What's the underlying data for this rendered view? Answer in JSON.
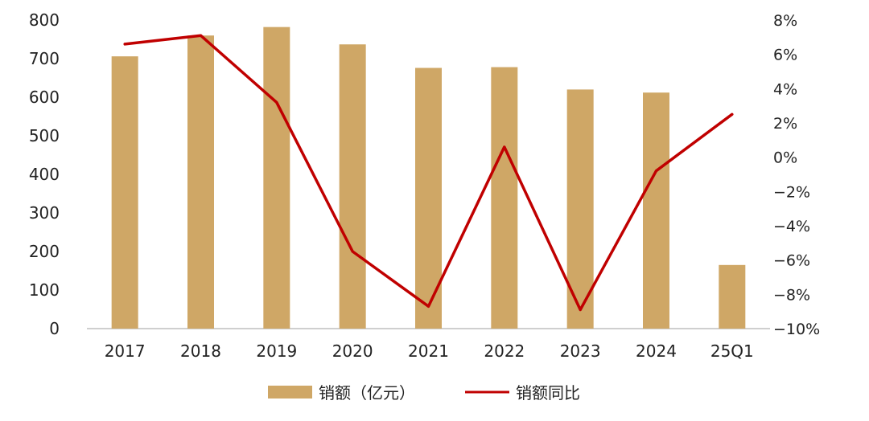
{
  "chart_data": {
    "type": "bar+line",
    "categories": [
      "2017",
      "2018",
      "2019",
      "2020",
      "2021",
      "2022",
      "2023",
      "2024",
      "25Q1"
    ],
    "series": [
      {
        "name": "销额（亿元）",
        "kind": "bar",
        "axis": "left",
        "color": "#CFA766",
        "values": [
          706,
          760,
          782,
          737,
          676,
          678,
          620,
          612,
          165
        ]
      },
      {
        "name": "销额同比",
        "kind": "line",
        "axis": "right",
        "unit": "%",
        "color": "#C00000",
        "values": [
          6.6,
          7.1,
          3.2,
          -5.5,
          -8.7,
          0.6,
          -8.9,
          -0.8,
          2.5
        ]
      }
    ],
    "left_axis": {
      "ylim": [
        0,
        800
      ],
      "ticks": [
        "0",
        "100",
        "200",
        "300",
        "400",
        "500",
        "600",
        "700",
        "800"
      ]
    },
    "right_axis": {
      "ylim": [
        -10,
        8
      ],
      "ticks": [
        "8%",
        "6%",
        "4%",
        "2%",
        "0%",
        "−2%",
        "−4%",
        "−6%",
        "−8%",
        "−10%"
      ]
    },
    "grid": false,
    "legend": {
      "placement": "bottom-center"
    }
  }
}
